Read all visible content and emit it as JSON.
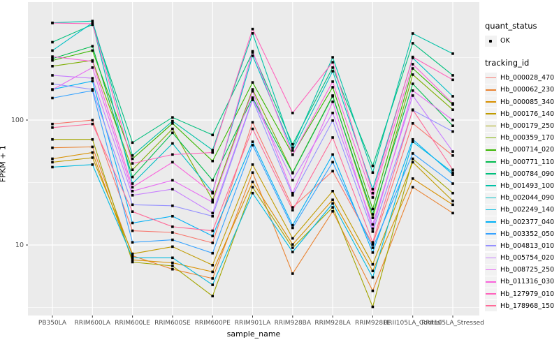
{
  "chart_data": {
    "type": "line",
    "title": "",
    "xlabel": "sample_name",
    "ylabel": "FPKM + 1",
    "y_scale": "log10",
    "y_ticks": [
      100,
      10
    ],
    "y_tick_labels": [
      "100",
      "10"
    ],
    "y_minor_ticks": [
      316,
      31.6,
      3.16
    ],
    "ylim": [
      2.7,
      880
    ],
    "grid": true,
    "legend_position": "right",
    "point_color": "#000000",
    "panel_bg": "#ebebeb",
    "grid_color": "#ffffff",
    "axis_text_color": "#4d4d4d",
    "categories": [
      "PB350LA",
      "RRIM600LA",
      "RRIM600LE",
      "RRIM600SE",
      "RRIM600PE",
      "RRIM901LA",
      "RRIM928BA",
      "RRIM928LA",
      "RRIM928LE",
      "RRII105LA_Control",
      "RRII105LA_Stressed"
    ],
    "series": [
      {
        "name": "Hb_000028_470",
        "color": "#F8766D",
        "values": [
          93,
          100,
          13,
          12.6,
          10.4,
          96,
          20,
          39,
          10.1,
          94,
          52
        ]
      },
      {
        "name": "Hb_000062_230",
        "color": "#EA8331",
        "values": [
          60,
          61,
          8.2,
          6.4,
          5.4,
          38,
          5.9,
          18.6,
          4.3,
          29,
          18
        ]
      },
      {
        "name": "Hb_000085_340",
        "color": "#D89000",
        "values": [
          49,
          55,
          7.6,
          7.2,
          6.1,
          32,
          10.1,
          23,
          6.2,
          34,
          21
        ]
      },
      {
        "name": "Hb_000176_140",
        "color": "#C09B00",
        "values": [
          46,
          50,
          8.5,
          9.7,
          6.9,
          44,
          11.3,
          27,
          7.0,
          46,
          22.5
        ]
      },
      {
        "name": "Hb_000179_250",
        "color": "#A3A500",
        "values": [
          70,
          70,
          7.3,
          6.8,
          3.9,
          29,
          9.5,
          20,
          3.2,
          49,
          26
        ]
      },
      {
        "name": "Hb_000359_170",
        "color": "#7CAE00",
        "values": [
          270,
          300,
          40,
          85,
          23,
          176,
          38,
          157,
          16.5,
          231,
          121
        ]
      },
      {
        "name": "Hb_000714_020",
        "color": "#39B600",
        "values": [
          300,
          360,
          49,
          94,
          47,
          200,
          53,
          183,
          19.4,
          259,
          133
        ]
      },
      {
        "name": "Hb_000771_110",
        "color": "#00BB4E",
        "values": [
          310,
          390,
          35,
          79,
          33,
          151,
          37.6,
          155,
          17.6,
          195,
          90
        ]
      },
      {
        "name": "Hb_000784_090",
        "color": "#00BF7D",
        "values": [
          420,
          580,
          66,
          105,
          76,
          348,
          64,
          263,
          43,
          412,
          228
        ]
      },
      {
        "name": "Hb_001493_100",
        "color": "#00C1A7",
        "values": [
          600,
          620,
          52,
          98,
          57.5,
          494,
          60,
          318,
          38,
          493,
          340
        ]
      },
      {
        "name": "Hb_002044_090",
        "color": "#00BFC4",
        "values": [
          360,
          600,
          31,
          65,
          26.5,
          327,
          57,
          246,
          28,
          314,
          155
        ]
      },
      {
        "name": "Hb_002249_140",
        "color": "#00BAE0",
        "values": [
          42,
          44,
          7.9,
          7.9,
          4.8,
          26,
          8.8,
          21.5,
          5.5,
          67,
          38
        ]
      },
      {
        "name": "Hb_002377_040",
        "color": "#00B0F6",
        "values": [
          176,
          205,
          15,
          17,
          11.8,
          67,
          14.4,
          53,
          8.7,
          70,
          36.6
        ]
      },
      {
        "name": "Hb_003352_050",
        "color": "#35A2FF",
        "values": [
          150,
          172,
          10.5,
          11,
          8.6,
          63,
          13.7,
          46,
          9.5,
          54,
          31
        ]
      },
      {
        "name": "Hb_004813_010",
        "color": "#9590FF",
        "values": [
          195,
          176,
          21,
          20.6,
          17,
          145,
          25,
          99,
          12.8,
          120,
          81
        ]
      },
      {
        "name": "Hb_005754_020",
        "color": "#C77CFF",
        "values": [
          228,
          216,
          25,
          28,
          18,
          148,
          33,
          114,
          14.6,
          157,
          56
        ]
      },
      {
        "name": "Hb_008725_250",
        "color": "#E76BF3",
        "values": [
          175,
          263,
          27,
          33,
          22,
          170,
          26,
          140,
          13.5,
          172,
          100
        ]
      },
      {
        "name": "Hb_011316_030",
        "color": "#FA62DB",
        "values": [
          322,
          295,
          29,
          46,
          26,
          355,
          52.7,
          203,
          24,
          280,
          136
        ]
      },
      {
        "name": "Hb_127979_010",
        "color": "#FF62BC",
        "values": [
          598,
          590,
          45,
          53,
          55,
          535,
          114,
          290,
          26,
          320,
          210
        ]
      },
      {
        "name": "Hb_178968_150",
        "color": "#FF6A98",
        "values": [
          87,
          93,
          18.5,
          14,
          13,
          85,
          19,
          72.5,
          10.5,
          121,
          40
        ]
      }
    ]
  },
  "axes": {
    "x_title": "sample_name",
    "y_title": "FPKM + 1"
  },
  "legend": {
    "quant_status_title": "quant_status",
    "ok_label": "OK",
    "tracking_id_title": "tracking_id"
  }
}
